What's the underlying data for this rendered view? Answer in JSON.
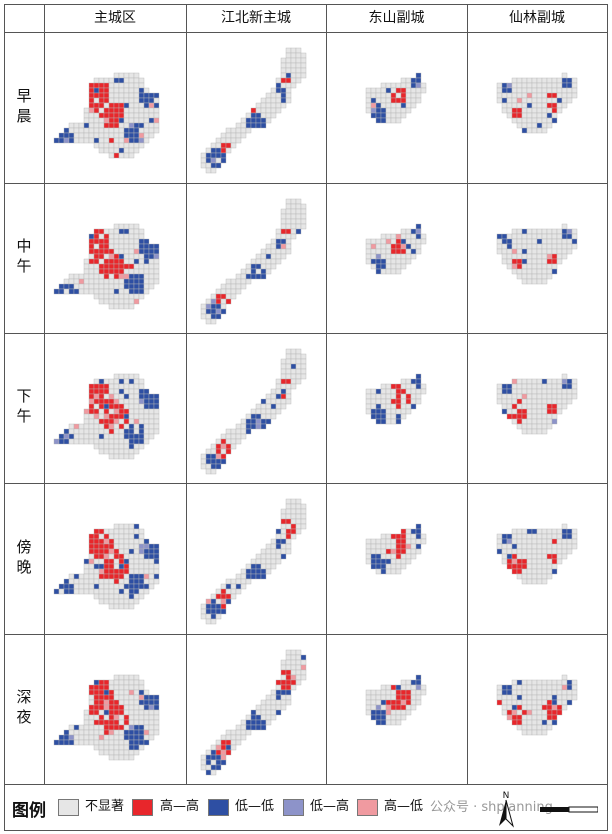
{
  "columns": [
    "主城区",
    "江北新主城",
    "东山副城",
    "仙林副城"
  ],
  "rows": [
    {
      "label_top": "早",
      "label_bottom": "晨"
    },
    {
      "label_top": "中",
      "label_bottom": "午"
    },
    {
      "label_top": "下",
      "label_bottom": "午"
    },
    {
      "label_top": "傍",
      "label_bottom": "晚"
    },
    {
      "label_top": "深",
      "label_bottom": "夜"
    }
  ],
  "legend": {
    "title": "图例",
    "items": [
      {
        "label": "不显著",
        "color": "#e6e6e6"
      },
      {
        "label": "高—高",
        "color": "#e8262b"
      },
      {
        "label": "低—低",
        "color": "#2e4fa3"
      },
      {
        "label": "低—高",
        "color": "#8d93c9"
      },
      {
        "label": "高—低",
        "color": "#f09aa0"
      }
    ]
  },
  "watermark": "公众号 · shplanning",
  "north_label": "N",
  "colors": {
    "grid_line": "#555555",
    "cell_outline": "#b5b5b5"
  }
}
